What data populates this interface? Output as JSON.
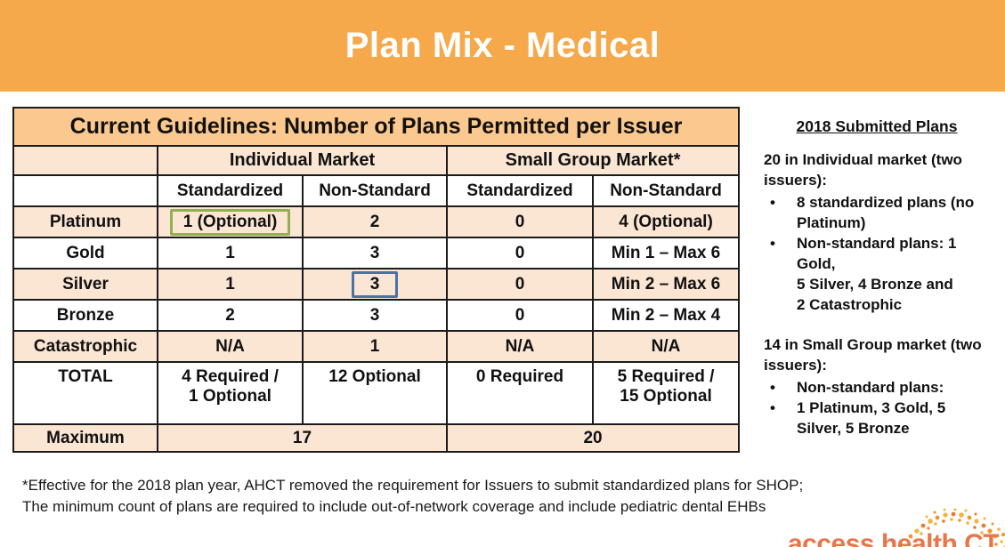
{
  "slide": {
    "title": "Plan Mix - Medical"
  },
  "table": {
    "title": "Current Guidelines: Number of Plans Permitted per Issuer",
    "group_headers": [
      "Individual Market",
      "Small Group Market*"
    ],
    "col_headers": [
      "Standardized",
      "Non-Standard",
      "Standardized",
      "Non-Standard"
    ],
    "rows": [
      {
        "label": "Platinum",
        "cells": [
          "1 (Optional)",
          "2",
          "0",
          "4 (Optional)"
        ]
      },
      {
        "label": "Gold",
        "cells": [
          "1",
          "3",
          "0",
          "Min 1 – Max 6"
        ]
      },
      {
        "label": "Silver",
        "cells": [
          "1",
          "3",
          "0",
          "Min 2 – Max 6"
        ]
      },
      {
        "label": "Bronze",
        "cells": [
          "2",
          "3",
          "0",
          "Min 2 – Max 4"
        ]
      },
      {
        "label": "Catastrophic",
        "cells": [
          "N/A",
          "1",
          "N/A",
          "N/A"
        ]
      },
      {
        "label": "TOTAL",
        "cells": [
          "4 Required /\n1 Optional",
          "12 Optional",
          "0 Required",
          "5 Required /\n15 Optional"
        ]
      }
    ],
    "highlights": [
      {
        "row": 0,
        "col": 0,
        "style": "green",
        "color": "#94AE53"
      },
      {
        "row": 2,
        "col": 1,
        "style": "blue",
        "color": "#4C72A2"
      }
    ],
    "maximum_row": {
      "label": "Maximum",
      "individual": "17",
      "small_group": "20"
    }
  },
  "sidebar": {
    "heading": "2018 Submitted Plans",
    "sections": [
      {
        "intro": "20 in Individual market (two\nissuers):",
        "bullets": [
          "8 standardized plans (no\nPlatinum)",
          "Non-standard plans: 1 Gold,\n5 Silver, 4 Bronze and\n 2 Catastrophic"
        ]
      },
      {
        "intro": "14 in Small Group market (two\nissuers):",
        "bullets": [
          "Non-standard plans:",
          "1 Platinum,  3 Gold,  5\nSilver, 5 Bronze"
        ]
      }
    ]
  },
  "footnote": {
    "line1": "*Effective for the 2018 plan year, AHCT removed the requirement for Issuers to submit standardized plans for SHOP;",
    "line2": "The minimum count of plans are required to include out-of-network coverage and include pediatric dental EHBs"
  },
  "logo": {
    "text": "access health CT"
  },
  "colors": {
    "banner_orange": "#F5A94B",
    "table_title_row": "#FBC98F",
    "row_peach": "#FBE5D3",
    "green_box": "#94AE53",
    "blue_box": "#4C72A2",
    "logo_orange": "#E8764B"
  }
}
